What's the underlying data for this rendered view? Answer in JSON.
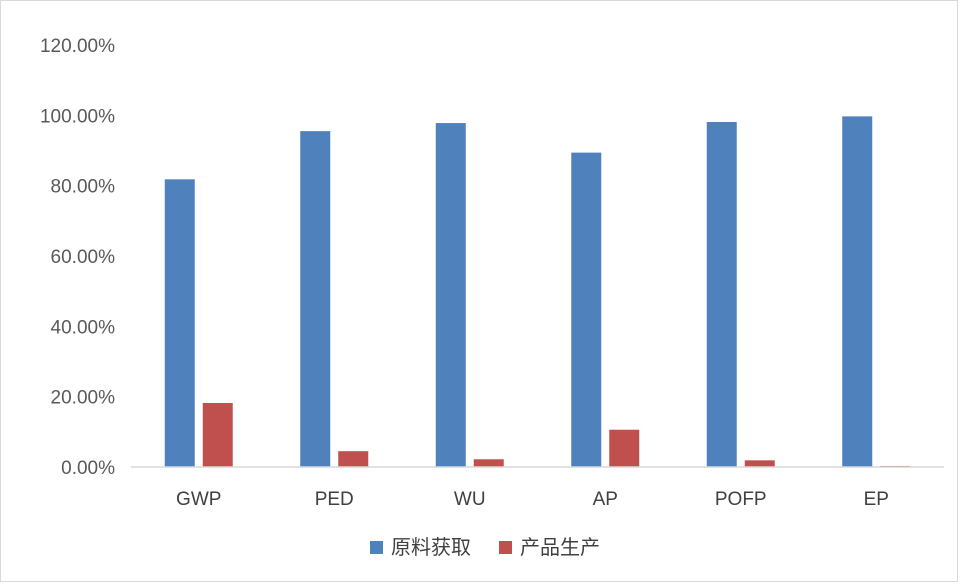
{
  "chart_data": {
    "type": "bar",
    "categories": [
      "GWP",
      "PED",
      "WU",
      "AP",
      "POFP",
      "EP"
    ],
    "series": [
      {
        "name": "原料获取",
        "color": "#4f81bd",
        "values": [
          81.8,
          95.5,
          97.8,
          89.4,
          98.1,
          99.7
        ]
      },
      {
        "name": "产品生产",
        "color": "#c0504d",
        "values": [
          18.2,
          4.5,
          2.2,
          10.6,
          1.9,
          0.3
        ]
      }
    ],
    "y_ticks": [
      "0.00%",
      "20.00%",
      "40.00%",
      "60.00%",
      "80.00%",
      "100.00%",
      "120.00%"
    ],
    "ylim": [
      0,
      120
    ],
    "y_unit": "%",
    "grid": false,
    "legend_position": "bottom"
  }
}
